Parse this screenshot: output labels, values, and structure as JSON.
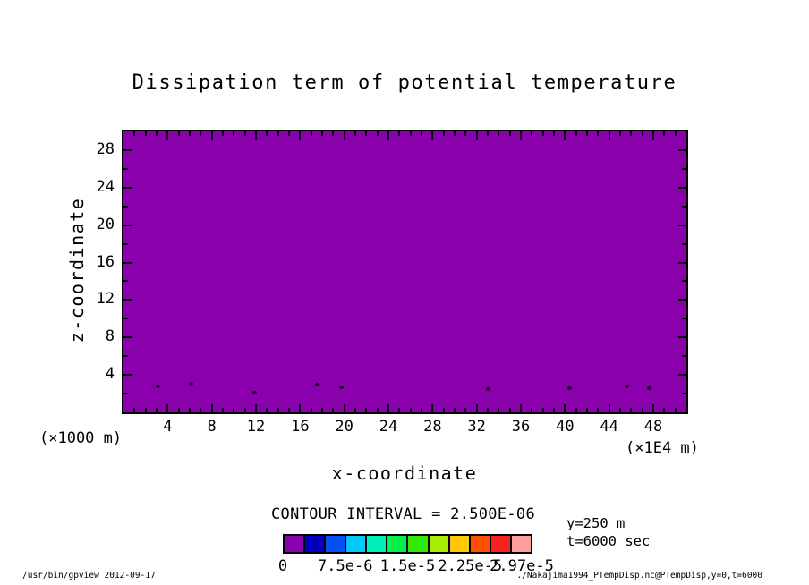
{
  "title": "Dissipation term of potential temperature",
  "chart_data": {
    "type": "heatmap",
    "title": "Dissipation term of potential temperature",
    "xlabel": "x-coordinate",
    "ylabel": "z-coordinate",
    "x_unit": "(×1E4 m)",
    "y_unit": "(×1000 m)",
    "xlim": [
      0,
      51
    ],
    "ylim": [
      0,
      30
    ],
    "x_major_ticks": [
      4,
      8,
      12,
      16,
      20,
      24,
      28,
      32,
      36,
      40,
      44,
      48
    ],
    "x_minor_step": 1,
    "y_major_ticks": [
      4,
      8,
      12,
      16,
      20,
      24,
      28
    ],
    "y_minor_step": 2,
    "grid": false,
    "fill_color": "#8A00AD",
    "field_description": "entire domain lies in the lowest contour bin (dissipation ≈ 0, purple); only tiny closed contour maxima appear near the surface below z≈3",
    "value_range": [
      0,
      2.97e-05
    ],
    "contour_interval": 2.5e-06,
    "surface_features": [
      {
        "x": 3.1,
        "z": 2.8
      },
      {
        "x": 6.1,
        "z": 3.1
      },
      {
        "x": 11.8,
        "z": 2.1
      },
      {
        "x": 17.5,
        "z": 3.0
      },
      {
        "x": 19.7,
        "z": 2.7
      },
      {
        "x": 33.0,
        "z": 2.5
      },
      {
        "x": 40.4,
        "z": 2.6
      },
      {
        "x": 45.6,
        "z": 2.8
      },
      {
        "x": 47.6,
        "z": 2.6
      }
    ],
    "colorbar": {
      "heading": "CONTOUR INTERVAL = 2.500E-06",
      "colors": [
        "#8A00AD",
        "#0000BE",
        "#0050F5",
        "#00C8FA",
        "#00F0B9",
        "#00F050",
        "#2CEB00",
        "#A8EE00",
        "#FFC800",
        "#FF5000",
        "#FA2020",
        "#FF9E9E"
      ],
      "tick_labels": [
        {
          "text": "0",
          "pos": 0
        },
        {
          "text": "7.5e-6",
          "pos": 0.25
        },
        {
          "text": "1.5e-5",
          "pos": 0.5
        },
        {
          "text": "2.25e-5",
          "pos": 0.75
        },
        {
          "text": "2.97e-5",
          "pos": 0.957
        }
      ]
    }
  },
  "annotations": {
    "line1": "y=250 m",
    "line2": "t=6000 sec"
  },
  "footer": {
    "left": "/usr/bin/gpview  2012-09-17",
    "right": "./Nakajima1994_PTempDisp.nc@PTempDisp,y=0,t=6000"
  }
}
